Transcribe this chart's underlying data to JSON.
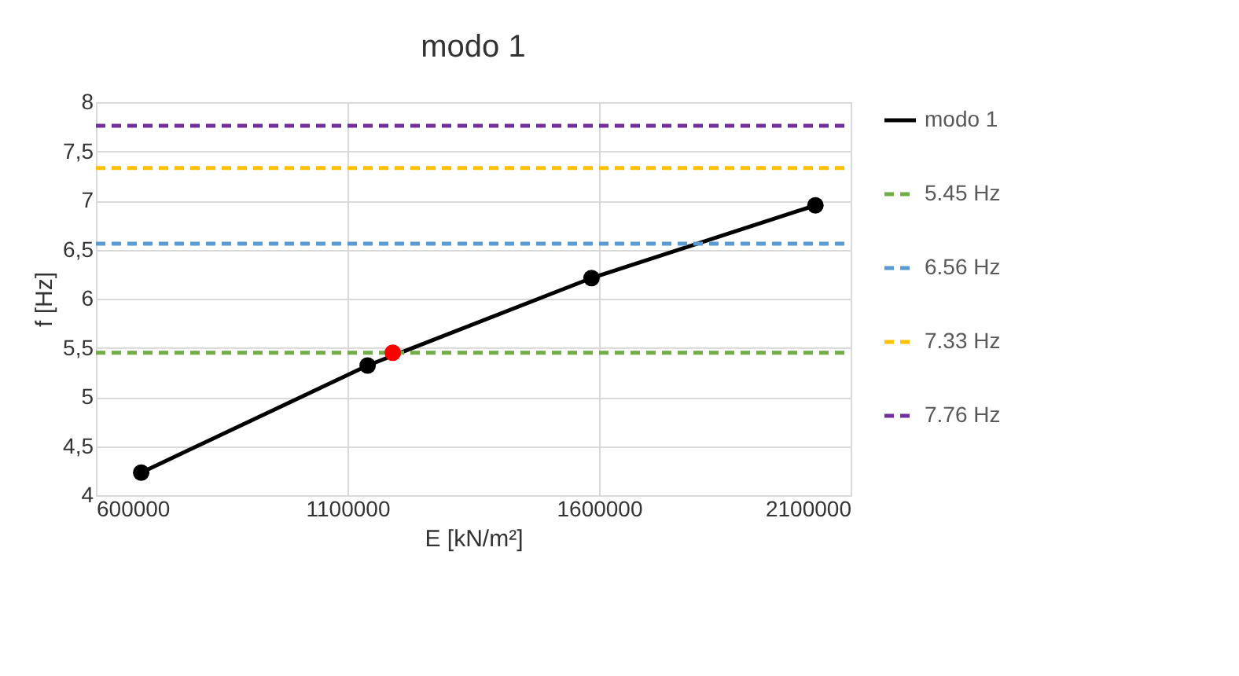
{
  "chart_data": {
    "type": "line",
    "title": "modo 1",
    "xlabel": "E [kN/m²]",
    "ylabel": "f [Hz]",
    "xlim": [
      600000,
      2100000
    ],
    "xticks": [
      600000,
      1100000,
      1600000,
      2100000
    ],
    "ylim": [
      4,
      8
    ],
    "yticks": [
      4,
      {
        "value": 4.5,
        "label": "4,5"
      },
      5,
      {
        "value": 5.5,
        "label": "5,5"
      },
      6,
      {
        "value": 6.5,
        "label": "6,5"
      },
      7,
      {
        "value": 7.5,
        "label": "7,5"
      },
      8
    ],
    "grid": true,
    "legend": "right",
    "series": [
      {
        "name": "modo 1",
        "color": "#000000",
        "x": [
          690000,
          1140000,
          1585000,
          2030000
        ],
        "values": [
          4.23,
          5.32,
          6.21,
          6.95
        ],
        "marker": "circle",
        "line_style": "solid"
      },
      {
        "name": "5.45 Hz",
        "color": "#70ad47",
        "x": [
          600000,
          2100000
        ],
        "values": [
          5.45,
          5.45
        ],
        "marker": "none",
        "line_style": "dashed"
      },
      {
        "name": "6.56 Hz",
        "color": "#5b9bd5",
        "x": [
          600000,
          2100000
        ],
        "values": [
          6.56,
          6.56
        ],
        "marker": "none",
        "line_style": "dashed"
      },
      {
        "name": "7.33 Hz",
        "color": "#ffc000",
        "x": [
          600000,
          2100000
        ],
        "values": [
          7.33,
          7.33
        ],
        "marker": "none",
        "line_style": "dashed"
      },
      {
        "name": "7.76 Hz",
        "color": "#7030a0",
        "x": [
          600000,
          2100000
        ],
        "values": [
          7.76,
          7.76
        ],
        "marker": "none",
        "line_style": "dashed"
      },
      {
        "type": "scatter",
        "color": "#ff0000",
        "x": [
          1190000
        ],
        "values": [
          5.45
        ],
        "marker": "circle"
      }
    ]
  }
}
